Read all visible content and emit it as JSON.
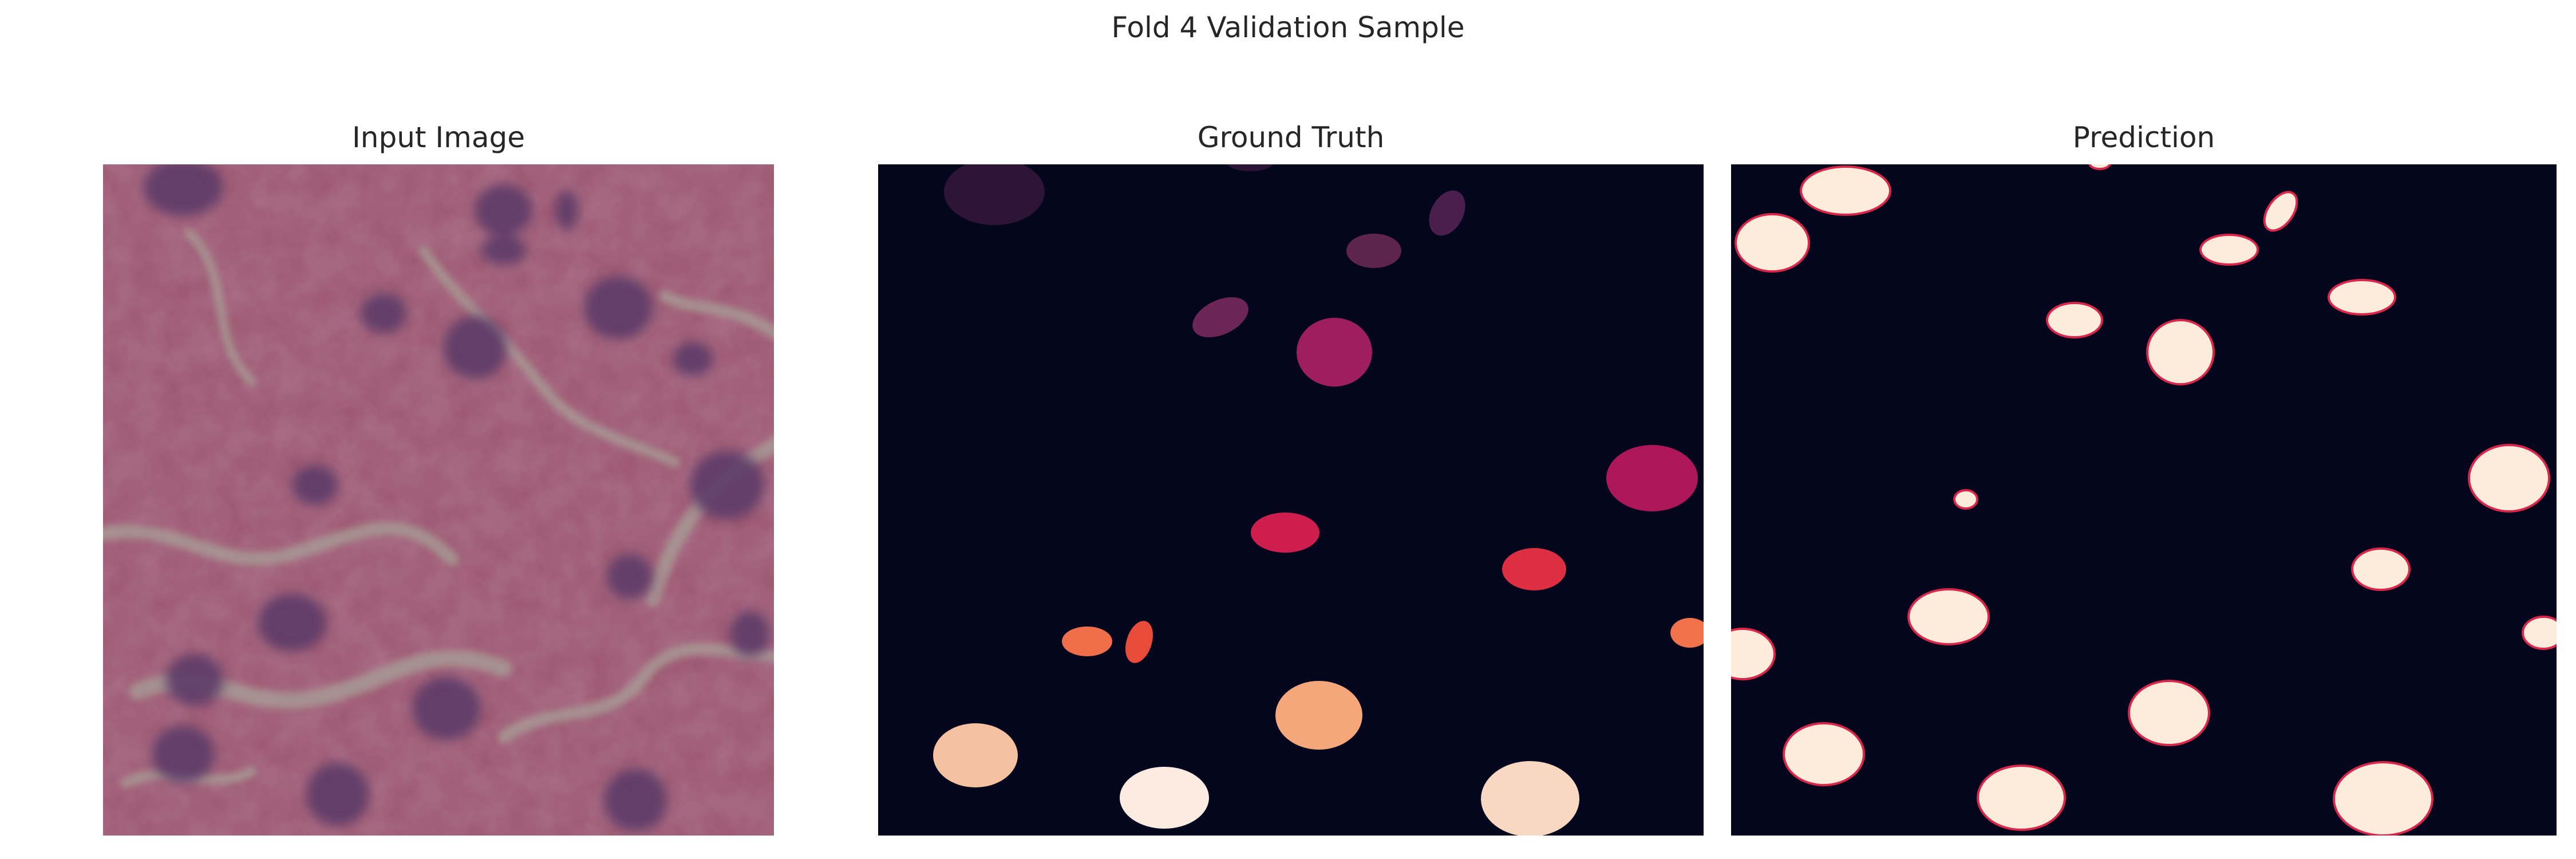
{
  "figure": {
    "suptitle": "Fold 4 Validation Sample"
  },
  "panels": [
    {
      "title": "Input Image",
      "kind": "photo",
      "colormap": [
        "#8f4a6b",
        "#a35a78",
        "#b07aa0",
        "#6f5f8c"
      ]
    },
    {
      "title": "Ground Truth",
      "kind": "instance-mask",
      "background": "#03061c"
    },
    {
      "title": "Prediction",
      "kind": "binary-mask",
      "background": "#03061c",
      "foreground": "#fcecdc",
      "edge": "#d9264a"
    }
  ],
  "icons": [
    "h-and-e-tissue-image",
    "instance-label-mask",
    "predicted-mask"
  ]
}
